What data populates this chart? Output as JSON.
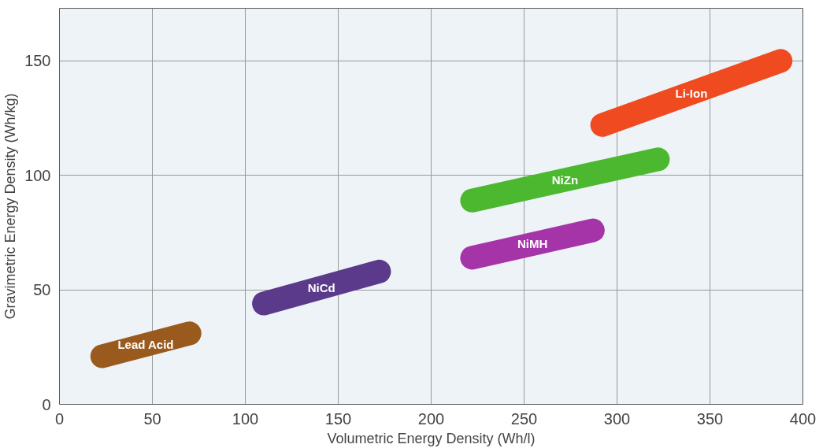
{
  "chart_data": {
    "type": "line",
    "xlabel": "Volumetric Energy Density (Wh/l)",
    "ylabel": "Gravimetric Energy Density (Wh/kg)",
    "xlim": [
      0,
      400
    ],
    "xticks": [
      0,
      50,
      100,
      150,
      200,
      250,
      300,
      350,
      400
    ],
    "ylim": [
      0,
      173
    ],
    "yticks": [
      0,
      50,
      100,
      150
    ],
    "grid": true,
    "series": [
      {
        "name": "Lead Acid",
        "color": "#9a5a1e",
        "x": [
          23,
          70
        ],
        "values": [
          21,
          31
        ]
      },
      {
        "name": "NiCd",
        "color": "#5b3a8c",
        "x": [
          110,
          172
        ],
        "values": [
          44,
          58
        ]
      },
      {
        "name": "NiMH",
        "color": "#a534a8",
        "x": [
          222,
          287
        ],
        "values": [
          64,
          76
        ]
      },
      {
        "name": "NiZn",
        "color": "#4cb830",
        "x": [
          222,
          322
        ],
        "values": [
          89,
          107
        ]
      },
      {
        "name": "Li-Ion",
        "color": "#f04a20",
        "x": [
          292,
          388
        ],
        "values": [
          122,
          150
        ]
      }
    ]
  }
}
